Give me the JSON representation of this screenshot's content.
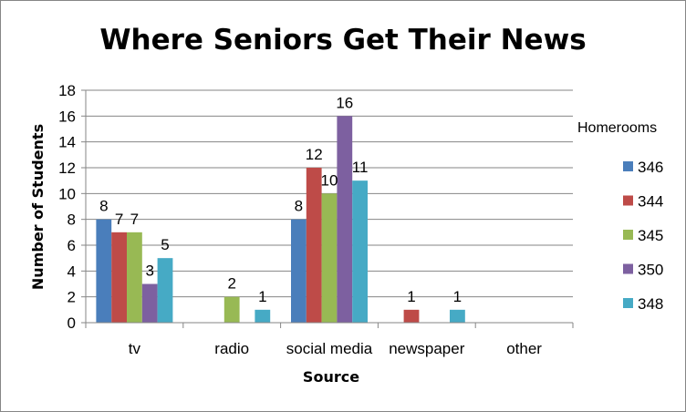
{
  "chart_data": {
    "type": "bar",
    "title": "Where Seniors Get Their News",
    "xlabel": "Source",
    "ylabel": "Number of Students",
    "ylim": [
      0,
      18
    ],
    "yticks": [
      0,
      2,
      4,
      6,
      8,
      10,
      12,
      14,
      16,
      18
    ],
    "categories": [
      "tv",
      "radio",
      "social media",
      "newspaper",
      "other"
    ],
    "legend_title": "Homerooms",
    "legend_position": "right",
    "grid": true,
    "series": [
      {
        "name": "346",
        "color": "#4A7EBB",
        "values": [
          8,
          null,
          8,
          null,
          null
        ]
      },
      {
        "name": "344",
        "color": "#BE4B48",
        "values": [
          7,
          null,
          12,
          1,
          null
        ]
      },
      {
        "name": "345",
        "color": "#98B954",
        "values": [
          7,
          2,
          10,
          null,
          null
        ]
      },
      {
        "name": "350",
        "color": "#7D60A0",
        "values": [
          3,
          null,
          16,
          null,
          null
        ]
      },
      {
        "name": "348",
        "color": "#46AAC5",
        "values": [
          5,
          1,
          11,
          1,
          null
        ]
      }
    ]
  }
}
